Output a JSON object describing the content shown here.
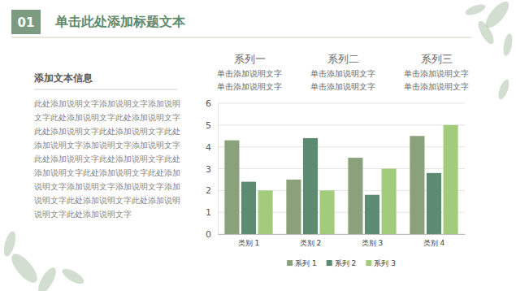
{
  "slide": {
    "number": "01",
    "title": "单击此处添加标题文本",
    "text_panel": {
      "heading": "添加文本信息",
      "lines": [
        "此处添加说明文字添加说明文字添加说明",
        "文字此处添加说明文字此处添加说明文字",
        "此处添加说明文字此处添加说明文字此处",
        "添加说明文字添加说明文字添加说明文字",
        "此处添加说明文字此处添加说明文字此处",
        "添加说明文字此处添加说明文字此处添加",
        "说明文字添加说明文字添加说明文字添加",
        "说明文字此处添加说明文字此处添加说明",
        "说明文字此处添加说明文字"
      ]
    },
    "columns": [
      {
        "title": "系列一",
        "lines": [
          "单击添加说明文字",
          "单击添加说明文字"
        ]
      },
      {
        "title": "系列二",
        "lines": [
          "单击添加说明文字",
          "单击添加说明文字"
        ]
      },
      {
        "title": "系列三",
        "lines": [
          "单击添加说明文字",
          "单击添加说明文字"
        ]
      }
    ]
  },
  "chart_data": {
    "type": "bar",
    "categories": [
      "类别 1",
      "类别 2",
      "类别 3",
      "类别 4"
    ],
    "series": [
      {
        "name": "系列 1",
        "color": "#8ba17c",
        "values": [
          4.3,
          2.5,
          3.5,
          4.5
        ]
      },
      {
        "name": "系列 2",
        "color": "#5d8b72",
        "values": [
          2.4,
          4.4,
          1.8,
          2.8
        ]
      },
      {
        "name": "系列 3",
        "color": "#a2cc7b",
        "values": [
          2,
          2,
          3,
          5
        ]
      }
    ],
    "ylim": [
      0,
      6
    ],
    "yticks": [
      0,
      1,
      2,
      3,
      4,
      5,
      6
    ],
    "grid": true,
    "legend": "bottom"
  }
}
